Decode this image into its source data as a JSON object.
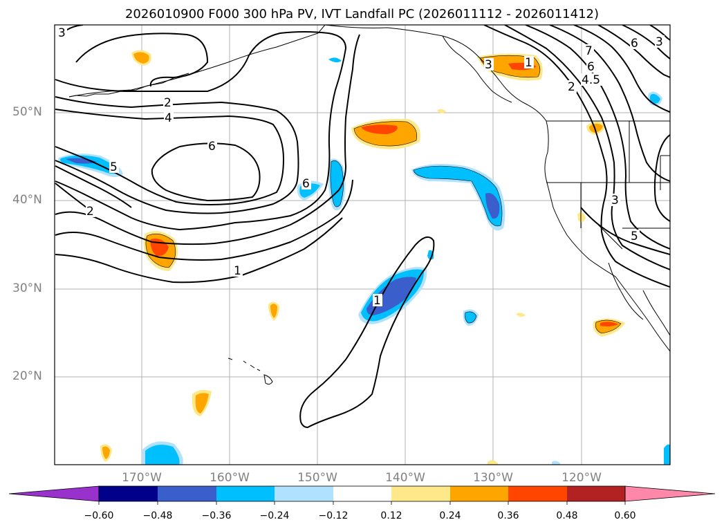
{
  "title": "2026010900 F000 300 hPa PV, IVT Landfall PC (2026011112 - 2026011412)",
  "lat_labels": [
    "50°N",
    "40°N",
    "30°N",
    "20°N"
  ],
  "lon_labels": [
    "170°W",
    "160°W",
    "150°W",
    "140°W",
    "130°W",
    "120°W"
  ],
  "contour_labels": [
    "3",
    "2",
    "4",
    "6",
    "5",
    "2",
    "6",
    "1",
    "1",
    "1",
    "7",
    "6",
    "4.5",
    "2",
    "6",
    "3",
    "3",
    "5",
    "3"
  ],
  "colorbar": {
    "ticks": [
      "−0.60",
      "−0.48",
      "−0.36",
      "−0.24",
      "−0.12",
      "0.12",
      "0.24",
      "0.36",
      "0.48",
      "0.60"
    ],
    "colors": [
      "#9932cc",
      "#00008b",
      "#3a5fcd",
      "#00bfff",
      "#b0e2ff",
      "#ffffff",
      "#ffe88a",
      "#ffa500",
      "#ff4500",
      "#b22222",
      "#ff88aa"
    ]
  }
}
